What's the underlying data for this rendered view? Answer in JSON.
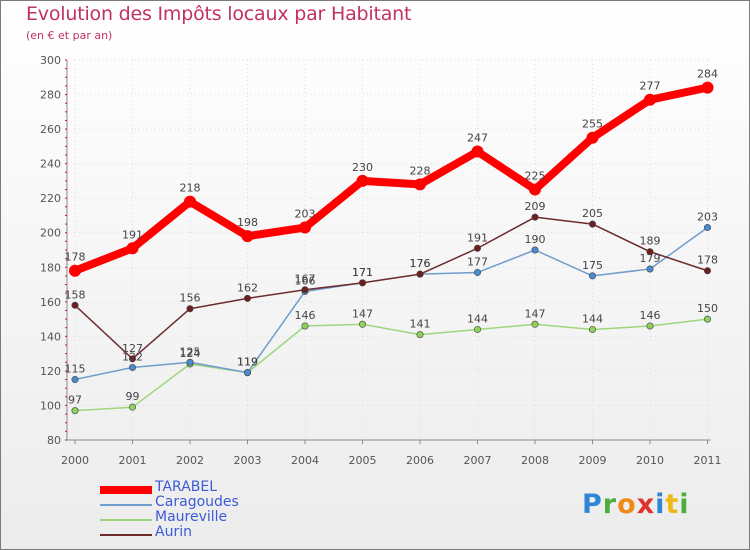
{
  "title": "Evolution des Impôts locaux par Habitant",
  "subtitle": "(en € et par an)",
  "logo": {
    "text": "Proxiti",
    "letters": [
      {
        "ch": "P",
        "color": "#2f86d6"
      },
      {
        "ch": "r",
        "color": "#4cae3d"
      },
      {
        "ch": "o",
        "color": "#f08a16"
      },
      {
        "ch": "x",
        "color": "#e0322b"
      },
      {
        "ch": "i",
        "color": "#2f86d6"
      },
      {
        "ch": "t",
        "color": "#f0b815"
      },
      {
        "ch": "i",
        "color": "#4cae3d"
      }
    ]
  },
  "chart_data": {
    "type": "line",
    "title": "Evolution des Impôts locaux par Habitant",
    "subtitle": "(en € et par an)",
    "xlabel": "",
    "ylabel": "",
    "ylim": [
      80,
      300
    ],
    "yticks": [
      80,
      100,
      120,
      140,
      160,
      180,
      200,
      220,
      240,
      260,
      280,
      300
    ],
    "categories": [
      "2000",
      "2001",
      "2002",
      "2003",
      "2004",
      "2005",
      "2006",
      "2007",
      "2008",
      "2009",
      "2010",
      "2011"
    ],
    "series": [
      {
        "name": "TARABEL",
        "color": "#ff0000",
        "width": 8,
        "marker_fill": "#ff0000",
        "values": [
          178,
          191,
          218,
          198,
          203,
          230,
          228,
          247,
          225,
          255,
          277,
          284
        ]
      },
      {
        "name": "Caragoudes",
        "color": "#6f9dcc",
        "width": 1.5,
        "marker_fill": "#4a8bd0",
        "values": [
          115,
          122,
          125,
          119,
          166,
          171,
          176,
          177,
          190,
          175,
          179,
          203
        ]
      },
      {
        "name": "Maureville",
        "color": "#9ed67e",
        "width": 1.5,
        "marker_fill": "#8fd15c",
        "values": [
          97,
          99,
          124,
          119,
          146,
          147,
          141,
          144,
          147,
          144,
          146,
          150
        ]
      },
      {
        "name": "Aurin",
        "color": "#6e2b2b",
        "width": 1.5,
        "marker_fill": "#6e1f1f",
        "values": [
          158,
          127,
          156,
          162,
          167,
          171,
          176,
          191,
          209,
          205,
          189,
          178
        ]
      }
    ]
  }
}
